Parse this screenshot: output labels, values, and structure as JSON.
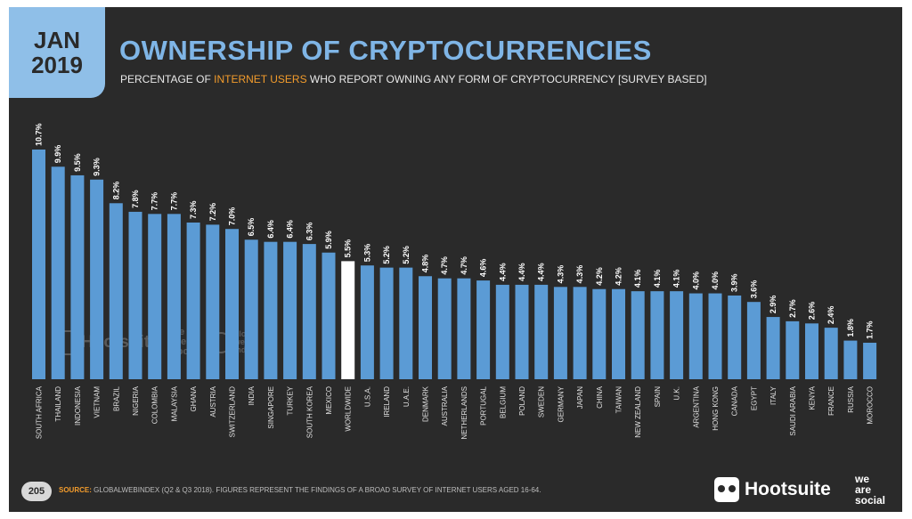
{
  "header": {
    "date_month": "JAN",
    "date_year": "2019",
    "title": "OWNERSHIP OF CRYPTOCURRENCIES",
    "subtitle_before": "PERCENTAGE OF ",
    "subtitle_highlight": "INTERNET USERS",
    "subtitle_after": " WHO REPORT OWNING ANY FORM OF CRYPTOCURRENCY [SURVEY BASED]"
  },
  "footer": {
    "page_number": "205",
    "source_label": "SOURCE:",
    "source_text": " GLOBALWEBINDEX (Q2 & Q3 2018). FIGURES REPRESENT THE FINDINGS OF A BROAD SURVEY OF INTERNET USERS AGED 16-64.",
    "hootsuite": "Hootsuite",
    "we_are_social_1": "we",
    "we_are_social_2": "are",
    "we_are_social_3": "social"
  },
  "watermark": {
    "hootsuite": "Hootsuite",
    "was_1": "we",
    "was_2": "are",
    "was_3": "social",
    "gwi_1": "global",
    "gwi_2": "web",
    "gwi_3": "index"
  },
  "colors": {
    "bar": "#5b9bd5",
    "highlight_bar": "#ffffff",
    "background": "#2a2a2a",
    "accent": "#f39c2c",
    "title": "#7fb5e6"
  },
  "chart_data": {
    "type": "bar",
    "categories": [
      "SOUTH AFRICA",
      "THAILAND",
      "INDONESIA",
      "VIETNAM",
      "BRAZIL",
      "NIGERIA",
      "COLOMBIA",
      "MALAYSIA",
      "GHANA",
      "AUSTRIA",
      "SWITZERLAND",
      "INDIA",
      "SINGAPORE",
      "TURKEY",
      "SOUTH KOREA",
      "MEXICO",
      "WORLDWIDE",
      "U.S.A.",
      "IRELAND",
      "U.A.E.",
      "DENMARK",
      "AUSTRALIA",
      "NETHERLANDS",
      "PORTUGAL",
      "BELGIUM",
      "POLAND",
      "SWEDEN",
      "GERMANY",
      "JAPAN",
      "CHINA",
      "TAIWAN",
      "NEW ZEALAND",
      "SPAIN",
      "U.K.",
      "ARGENTINA",
      "HONG KONG",
      "CANADA",
      "EGYPT",
      "ITALY",
      "SAUDI ARABIA",
      "KENYA",
      "FRANCE",
      "RUSSIA",
      "MOROCCO"
    ],
    "values": [
      10.7,
      9.9,
      9.5,
      9.3,
      8.2,
      7.8,
      7.7,
      7.7,
      7.3,
      7.2,
      7.0,
      6.5,
      6.4,
      6.4,
      6.3,
      5.9,
      5.5,
      5.3,
      5.2,
      5.2,
      4.8,
      4.7,
      4.7,
      4.6,
      4.4,
      4.4,
      4.4,
      4.3,
      4.3,
      4.2,
      4.2,
      4.1,
      4.1,
      4.1,
      4.0,
      4.0,
      3.9,
      3.6,
      2.9,
      2.7,
      2.6,
      2.4,
      1.8,
      1.7
    ],
    "value_labels": [
      "10.7%",
      "9.9%",
      "9.5%",
      "9.3%",
      "8.2%",
      "7.8%",
      "7.7%",
      "7.7%",
      "7.3%",
      "7.2%",
      "7.0%",
      "6.5%",
      "6.4%",
      "6.4%",
      "6.3%",
      "5.9%",
      "5.5%",
      "5.3%",
      "5.2%",
      "5.2%",
      "4.8%",
      "4.7%",
      "4.7%",
      "4.6%",
      "4.4%",
      "4.4%",
      "4.4%",
      "4.3%",
      "4.3%",
      "4.2%",
      "4.2%",
      "4.1%",
      "4.1%",
      "4.1%",
      "4.0%",
      "4.0%",
      "3.9%",
      "3.6%",
      "2.9%",
      "2.7%",
      "2.6%",
      "2.4%",
      "1.8%",
      "1.7%"
    ],
    "highlight_category": "WORLDWIDE",
    "ylim": [
      0,
      10.7
    ],
    "grid": false,
    "legend": "none"
  }
}
